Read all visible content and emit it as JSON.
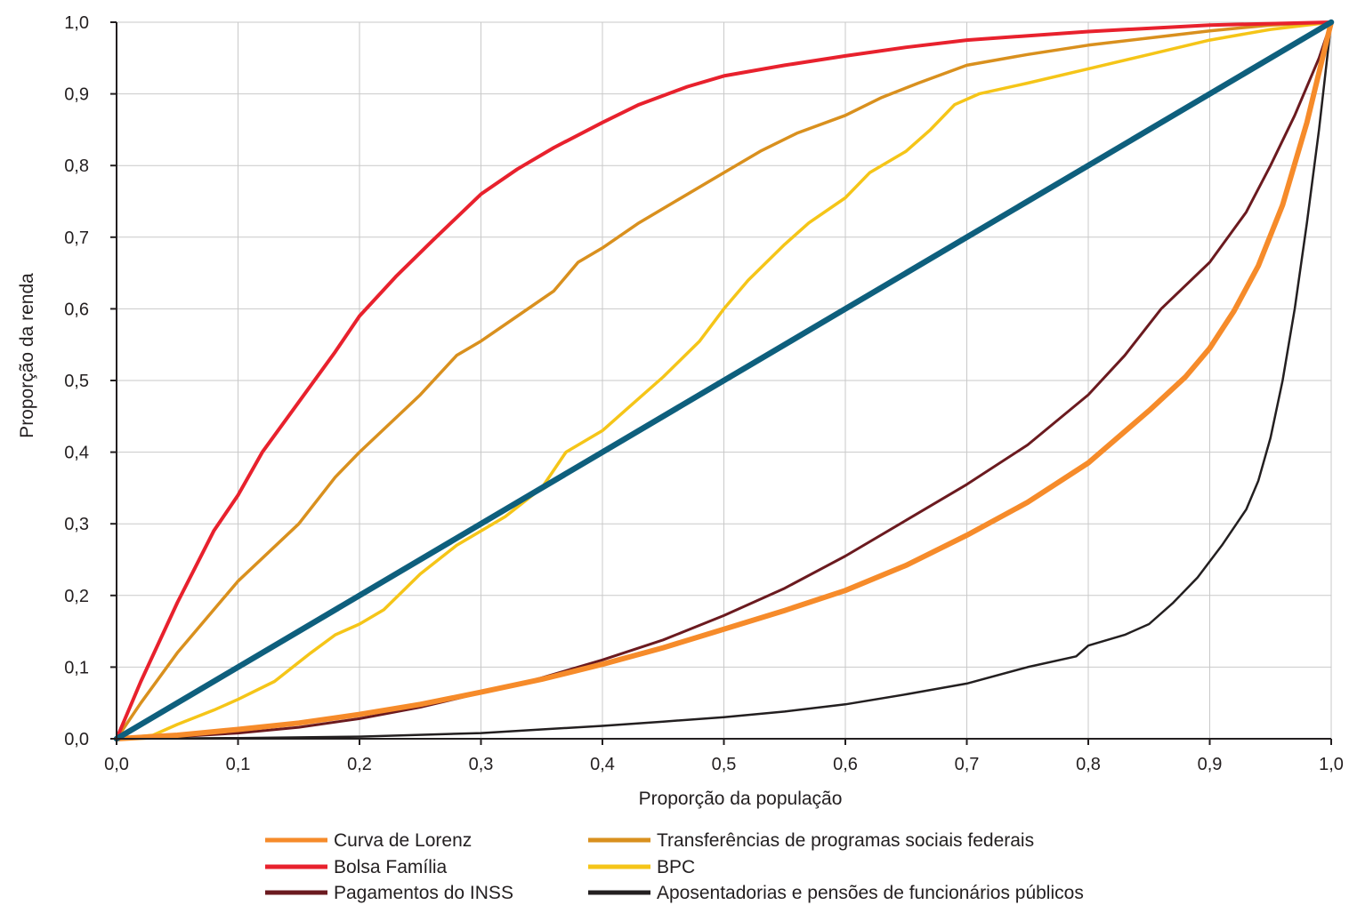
{
  "chart_data": {
    "type": "line",
    "title": "",
    "xlabel": "Proporção da população",
    "ylabel": "Proporção da renda",
    "xlim": [
      0,
      1
    ],
    "ylim": [
      0,
      1
    ],
    "grid": true,
    "legend_position": "bottom",
    "x_ticks": [
      "0,0",
      "0,1",
      "0,2",
      "0,3",
      "0,4",
      "0,5",
      "0,6",
      "0,7",
      "0,8",
      "0,9",
      "1,0"
    ],
    "y_ticks": [
      "0,0",
      "0,1",
      "0,2",
      "0,3",
      "0,4",
      "0,5",
      "0,6",
      "0,7",
      "0,8",
      "0,9",
      "1,0"
    ],
    "series": [
      {
        "name": "Curva de Lorenz",
        "color": "#f68b2a",
        "points": [
          [
            0,
            0
          ],
          [
            0.05,
            0.005
          ],
          [
            0.1,
            0.013
          ],
          [
            0.15,
            0.022
          ],
          [
            0.2,
            0.034
          ],
          [
            0.25,
            0.048
          ],
          [
            0.3,
            0.065
          ],
          [
            0.35,
            0.083
          ],
          [
            0.4,
            0.104
          ],
          [
            0.45,
            0.127
          ],
          [
            0.5,
            0.153
          ],
          [
            0.55,
            0.179
          ],
          [
            0.6,
            0.207
          ],
          [
            0.65,
            0.242
          ],
          [
            0.7,
            0.284
          ],
          [
            0.75,
            0.33
          ],
          [
            0.8,
            0.385
          ],
          [
            0.85,
            0.458
          ],
          [
            0.88,
            0.505
          ],
          [
            0.9,
            0.545
          ],
          [
            0.92,
            0.597
          ],
          [
            0.94,
            0.66
          ],
          [
            0.96,
            0.745
          ],
          [
            0.98,
            0.86
          ],
          [
            1,
            1
          ]
        ]
      },
      {
        "name": "Transferências de programas sociais federais",
        "color": "#d9901e",
        "points": [
          [
            0,
            0
          ],
          [
            0.02,
            0.05
          ],
          [
            0.05,
            0.12
          ],
          [
            0.08,
            0.18
          ],
          [
            0.1,
            0.22
          ],
          [
            0.15,
            0.3
          ],
          [
            0.18,
            0.365
          ],
          [
            0.2,
            0.4
          ],
          [
            0.25,
            0.48
          ],
          [
            0.28,
            0.535
          ],
          [
            0.3,
            0.555
          ],
          [
            0.33,
            0.59
          ],
          [
            0.36,
            0.625
          ],
          [
            0.38,
            0.665
          ],
          [
            0.4,
            0.685
          ],
          [
            0.43,
            0.72
          ],
          [
            0.46,
            0.75
          ],
          [
            0.5,
            0.79
          ],
          [
            0.53,
            0.82
          ],
          [
            0.56,
            0.845
          ],
          [
            0.6,
            0.87
          ],
          [
            0.63,
            0.895
          ],
          [
            0.66,
            0.915
          ],
          [
            0.7,
            0.94
          ],
          [
            0.75,
            0.955
          ],
          [
            0.8,
            0.968
          ],
          [
            0.85,
            0.978
          ],
          [
            0.9,
            0.988
          ],
          [
            0.95,
            0.996
          ],
          [
            1,
            1
          ]
        ]
      },
      {
        "name": "Bolsa Família",
        "color": "#e8212d",
        "points": [
          [
            0,
            0
          ],
          [
            0.02,
            0.08
          ],
          [
            0.05,
            0.19
          ],
          [
            0.08,
            0.29
          ],
          [
            0.1,
            0.34
          ],
          [
            0.12,
            0.4
          ],
          [
            0.15,
            0.47
          ],
          [
            0.18,
            0.54
          ],
          [
            0.2,
            0.59
          ],
          [
            0.23,
            0.645
          ],
          [
            0.26,
            0.695
          ],
          [
            0.3,
            0.76
          ],
          [
            0.33,
            0.795
          ],
          [
            0.36,
            0.825
          ],
          [
            0.4,
            0.86
          ],
          [
            0.43,
            0.885
          ],
          [
            0.47,
            0.91
          ],
          [
            0.5,
            0.925
          ],
          [
            0.55,
            0.94
          ],
          [
            0.6,
            0.953
          ],
          [
            0.65,
            0.965
          ],
          [
            0.7,
            0.975
          ],
          [
            0.8,
            0.987
          ],
          [
            0.9,
            0.996
          ],
          [
            1,
            1
          ]
        ]
      },
      {
        "name": "BPC",
        "color": "#f5c518",
        "points": [
          [
            0,
            0
          ],
          [
            0.03,
            0.005
          ],
          [
            0.05,
            0.02
          ],
          [
            0.08,
            0.04
          ],
          [
            0.1,
            0.055
          ],
          [
            0.13,
            0.08
          ],
          [
            0.16,
            0.12
          ],
          [
            0.18,
            0.145
          ],
          [
            0.2,
            0.16
          ],
          [
            0.22,
            0.18
          ],
          [
            0.25,
            0.23
          ],
          [
            0.28,
            0.27
          ],
          [
            0.3,
            0.29
          ],
          [
            0.32,
            0.31
          ],
          [
            0.35,
            0.35
          ],
          [
            0.37,
            0.4
          ],
          [
            0.4,
            0.43
          ],
          [
            0.42,
            0.46
          ],
          [
            0.45,
            0.505
          ],
          [
            0.48,
            0.555
          ],
          [
            0.5,
            0.6
          ],
          [
            0.52,
            0.64
          ],
          [
            0.55,
            0.69
          ],
          [
            0.57,
            0.72
          ],
          [
            0.6,
            0.755
          ],
          [
            0.62,
            0.79
          ],
          [
            0.65,
            0.82
          ],
          [
            0.67,
            0.85
          ],
          [
            0.69,
            0.885
          ],
          [
            0.71,
            0.9
          ],
          [
            0.75,
            0.915
          ],
          [
            0.8,
            0.935
          ],
          [
            0.85,
            0.955
          ],
          [
            0.9,
            0.975
          ],
          [
            0.95,
            0.99
          ],
          [
            1,
            1
          ]
        ]
      },
      {
        "name": "Pagamentos do INSS",
        "color": "#6b1a1f",
        "points": [
          [
            0,
            0
          ],
          [
            0.05,
            0.003
          ],
          [
            0.1,
            0.008
          ],
          [
            0.15,
            0.016
          ],
          [
            0.2,
            0.028
          ],
          [
            0.25,
            0.044
          ],
          [
            0.3,
            0.064
          ],
          [
            0.35,
            0.085
          ],
          [
            0.4,
            0.11
          ],
          [
            0.45,
            0.138
          ],
          [
            0.5,
            0.172
          ],
          [
            0.55,
            0.21
          ],
          [
            0.6,
            0.255
          ],
          [
            0.65,
            0.305
          ],
          [
            0.7,
            0.355
          ],
          [
            0.75,
            0.41
          ],
          [
            0.8,
            0.48
          ],
          [
            0.83,
            0.535
          ],
          [
            0.86,
            0.6
          ],
          [
            0.9,
            0.665
          ],
          [
            0.93,
            0.735
          ],
          [
            0.95,
            0.8
          ],
          [
            0.97,
            0.87
          ],
          [
            0.99,
            0.95
          ],
          [
            1,
            1
          ]
        ]
      },
      {
        "name": "Aposentadorias e pensões de funcionários públicos",
        "color": "#231f20",
        "points": [
          [
            0,
            0
          ],
          [
            0.1,
            0.001
          ],
          [
            0.2,
            0.003
          ],
          [
            0.3,
            0.008
          ],
          [
            0.35,
            0.013
          ],
          [
            0.4,
            0.018
          ],
          [
            0.45,
            0.024
          ],
          [
            0.5,
            0.03
          ],
          [
            0.55,
            0.038
          ],
          [
            0.6,
            0.048
          ],
          [
            0.65,
            0.062
          ],
          [
            0.7,
            0.077
          ],
          [
            0.75,
            0.1
          ],
          [
            0.79,
            0.115
          ],
          [
            0.8,
            0.13
          ],
          [
            0.83,
            0.145
          ],
          [
            0.85,
            0.16
          ],
          [
            0.87,
            0.19
          ],
          [
            0.89,
            0.225
          ],
          [
            0.91,
            0.27
          ],
          [
            0.93,
            0.32
          ],
          [
            0.94,
            0.36
          ],
          [
            0.95,
            0.42
          ],
          [
            0.96,
            0.5
          ],
          [
            0.97,
            0.6
          ],
          [
            0.98,
            0.72
          ],
          [
            0.99,
            0.85
          ],
          [
            1,
            1
          ]
        ]
      },
      {
        "name": "",
        "color": "#0e5f7d",
        "points": [
          [
            0,
            0
          ],
          [
            1,
            1
          ]
        ]
      }
    ],
    "legend": [
      {
        "label": "Curva de Lorenz",
        "color": "#f68b2a"
      },
      {
        "label": "Transferências de programas sociais federais",
        "color": "#d9901e"
      },
      {
        "label": "Bolsa Família",
        "color": "#e8212d"
      },
      {
        "label": "BPC",
        "color": "#f5c518"
      },
      {
        "label": "Pagamentos do INSS",
        "color": "#6b1a1f"
      },
      {
        "label": "Aposentadorias e pensões de funcionários públicos",
        "color": "#231f20"
      }
    ]
  }
}
